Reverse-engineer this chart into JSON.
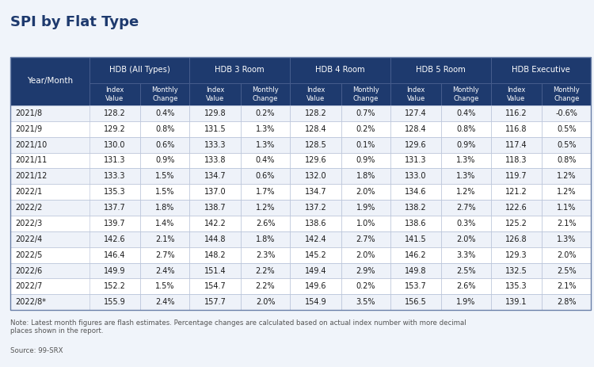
{
  "title": "SPI by Flat Type",
  "note": "Note: Latest month figures are flash estimates. Percentage changes are calculated based on actual index number with more decimal\nplaces shown in the report.",
  "source": "Source: 99-SRX",
  "header_groups": [
    "HDB (All Types)",
    "HDB 3 Room",
    "HDB 4 Room",
    "HDB 5 Room",
    "HDB Executive"
  ],
  "col0_header": "Year/Month",
  "rows": [
    [
      "2021/8",
      "128.2",
      "0.4%",
      "129.8",
      "0.2%",
      "128.2",
      "0.7%",
      "127.4",
      "0.4%",
      "116.2",
      "-0.6%"
    ],
    [
      "2021/9",
      "129.2",
      "0.8%",
      "131.5",
      "1.3%",
      "128.4",
      "0.2%",
      "128.4",
      "0.8%",
      "116.8",
      "0.5%"
    ],
    [
      "2021/10",
      "130.0",
      "0.6%",
      "133.3",
      "1.3%",
      "128.5",
      "0.1%",
      "129.6",
      "0.9%",
      "117.4",
      "0.5%"
    ],
    [
      "2021/11",
      "131.3",
      "0.9%",
      "133.8",
      "0.4%",
      "129.6",
      "0.9%",
      "131.3",
      "1.3%",
      "118.3",
      "0.8%"
    ],
    [
      "2021/12",
      "133.3",
      "1.5%",
      "134.7",
      "0.6%",
      "132.0",
      "1.8%",
      "133.0",
      "1.3%",
      "119.7",
      "1.2%"
    ],
    [
      "2022/1",
      "135.3",
      "1.5%",
      "137.0",
      "1.7%",
      "134.7",
      "2.0%",
      "134.6",
      "1.2%",
      "121.2",
      "1.2%"
    ],
    [
      "2022/2",
      "137.7",
      "1.8%",
      "138.7",
      "1.2%",
      "137.2",
      "1.9%",
      "138.2",
      "2.7%",
      "122.6",
      "1.1%"
    ],
    [
      "2022/3",
      "139.7",
      "1.4%",
      "142.2",
      "2.6%",
      "138.6",
      "1.0%",
      "138.6",
      "0.3%",
      "125.2",
      "2.1%"
    ],
    [
      "2022/4",
      "142.6",
      "2.1%",
      "144.8",
      "1.8%",
      "142.4",
      "2.7%",
      "141.5",
      "2.0%",
      "126.8",
      "1.3%"
    ],
    [
      "2022/5",
      "146.4",
      "2.7%",
      "148.2",
      "2.3%",
      "145.2",
      "2.0%",
      "146.2",
      "3.3%",
      "129.3",
      "2.0%"
    ],
    [
      "2022/6",
      "149.9",
      "2.4%",
      "151.4",
      "2.2%",
      "149.4",
      "2.9%",
      "149.8",
      "2.5%",
      "132.5",
      "2.5%"
    ],
    [
      "2022/7",
      "152.2",
      "1.5%",
      "154.7",
      "2.2%",
      "149.6",
      "0.2%",
      "153.7",
      "2.6%",
      "135.3",
      "2.1%"
    ],
    [
      "2022/8*",
      "155.9",
      "2.4%",
      "157.7",
      "2.0%",
      "154.9",
      "3.5%",
      "156.5",
      "1.9%",
      "139.1",
      "2.8%"
    ]
  ],
  "header_bg": "#1e3a6e",
  "header_text": "#ffffff",
  "row_bg_even": "#eef2f9",
  "row_bg_odd": "#ffffff",
  "border_color": "#b0bcd4",
  "title_color": "#1e3a6e",
  "body_text_color": "#1a1a1a",
  "note_color": "#555555",
  "background_color": "#f0f4fa"
}
